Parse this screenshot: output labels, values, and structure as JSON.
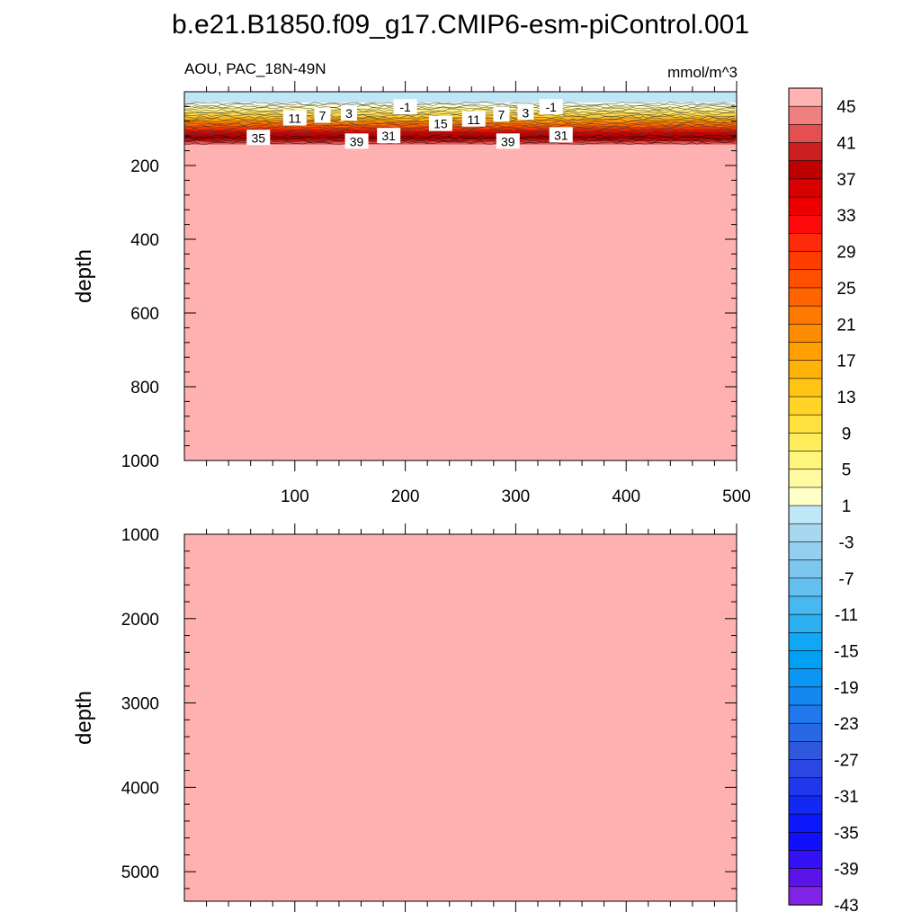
{
  "title": "b.e21.B1850.f09_g17.CMIP6-esm-piControl.001",
  "panel_left_label": "AOU, PAC_18N-49N",
  "units_label": "mmol/m^3",
  "colors": {
    "background_fill": "#ffb1b1",
    "surface_fill": "#bfe6f7"
  },
  "chart_data": [
    {
      "type": "contour",
      "title": "AOU, PAC_18N-49N",
      "units": "mmol/m^3",
      "ylabel": "depth",
      "xlabel": "",
      "xlim": [
        0,
        500
      ],
      "ylim": [
        1000,
        0
      ],
      "x_ticks": [
        100,
        200,
        300,
        400,
        500
      ],
      "x_tick_labels": [
        "100",
        "200",
        "300",
        "400",
        "500"
      ],
      "y_ticks": [
        200,
        400,
        600,
        800,
        1000
      ],
      "y_tick_labels": [
        "200",
        "400",
        "600",
        "800",
        "1000"
      ],
      "contour_labels": [
        {
          "x": 67,
          "depth": 125,
          "label": "35"
        },
        {
          "x": 100,
          "depth": 72,
          "label": "11"
        },
        {
          "x": 125,
          "depth": 65,
          "label": "7"
        },
        {
          "x": 149,
          "depth": 59,
          "label": "3"
        },
        {
          "x": 200,
          "depth": 42,
          "label": "-1"
        },
        {
          "x": 232,
          "depth": 87,
          "label": "15"
        },
        {
          "x": 262,
          "depth": 75,
          "label": "11"
        },
        {
          "x": 287,
          "depth": 62,
          "label": "7"
        },
        {
          "x": 309,
          "depth": 57,
          "label": "3"
        },
        {
          "x": 332,
          "depth": 42,
          "label": "-1"
        },
        {
          "x": 156,
          "depth": 135,
          "label": "39"
        },
        {
          "x": 185,
          "depth": 120,
          "label": "31"
        },
        {
          "x": 293,
          "depth": 135,
          "label": "39"
        },
        {
          "x": 341,
          "depth": 118,
          "label": "31"
        }
      ]
    },
    {
      "type": "contour",
      "ylabel": "depth",
      "xlabel": "",
      "xlim": [
        0,
        500
      ],
      "ylim": [
        5350,
        1000
      ],
      "x_ticks": [
        100,
        200,
        300,
        400,
        500
      ],
      "y_ticks": [
        1000,
        2000,
        3000,
        4000,
        5000
      ],
      "y_tick_labels": [
        "1000",
        "2000",
        "3000",
        "4000",
        "5000"
      ]
    }
  ],
  "colorbar": {
    "colors": [
      "#ffb3b3",
      "#f08080",
      "#e45050",
      "#cc2020",
      "#c00000",
      "#d80000",
      "#ee0000",
      "#ff0a0a",
      "#ff2a0a",
      "#ff3c00",
      "#ff5000",
      "#ff6400",
      "#ff7800",
      "#ff8c00",
      "#ffa000",
      "#ffb20a",
      "#ffc414",
      "#ffd424",
      "#ffe03c",
      "#ffec5a",
      "#fff47c",
      "#fffaa0",
      "#ffffc8",
      "#bfe6f7",
      "#a8d8f0",
      "#94cff0",
      "#7cc6ef",
      "#64c0f0",
      "#48b8f0",
      "#2cb0f2",
      "#10a8f4",
      "#00a0f4",
      "#0c96f4",
      "#1488f0",
      "#2078ec",
      "#2868e4",
      "#3058dc",
      "#2c48e4",
      "#2038ec",
      "#1428f4",
      "#0c18fc",
      "#1010ff",
      "#3410f4",
      "#5a14ea",
      "#8224e8"
    ],
    "labels": [
      "45",
      "41",
      "37",
      "33",
      "29",
      "25",
      "21",
      "17",
      "13",
      "9",
      "5",
      "1",
      "-3",
      "-7",
      "-11",
      "-15",
      "-19",
      "-23",
      "-27",
      "-31",
      "-35",
      "-39",
      "-43"
    ]
  }
}
